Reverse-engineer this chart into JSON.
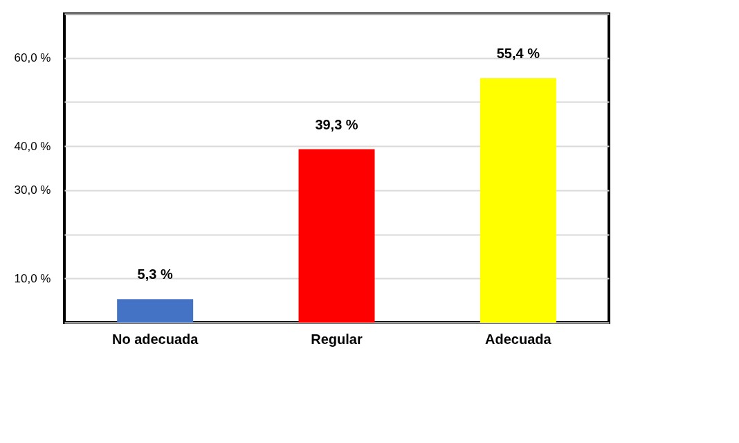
{
  "chart_data": {
    "type": "bar",
    "categories": [
      "No adecuada",
      "Regular",
      "Adecuada"
    ],
    "values": [
      5.3,
      39.3,
      55.4
    ],
    "colors": [
      "#4472c4",
      "#ff0000",
      "#ffff00"
    ],
    "value_labels": [
      "5,3 %",
      "39,3 %",
      "55,4 %"
    ],
    "ylim": [
      0,
      70
    ],
    "yticks": [
      {
        "value": 0,
        "label": null
      },
      {
        "value": 10,
        "label": "10,0 %"
      },
      {
        "value": 20,
        "label": null
      },
      {
        "value": 30,
        "label": "30,0 %"
      },
      {
        "value": 40,
        "label": "40,0 %"
      },
      {
        "value": 50,
        "label": null
      },
      {
        "value": 60,
        "label": "60,0 %"
      },
      {
        "value": 70,
        "label": null
      }
    ],
    "grid": "y"
  }
}
